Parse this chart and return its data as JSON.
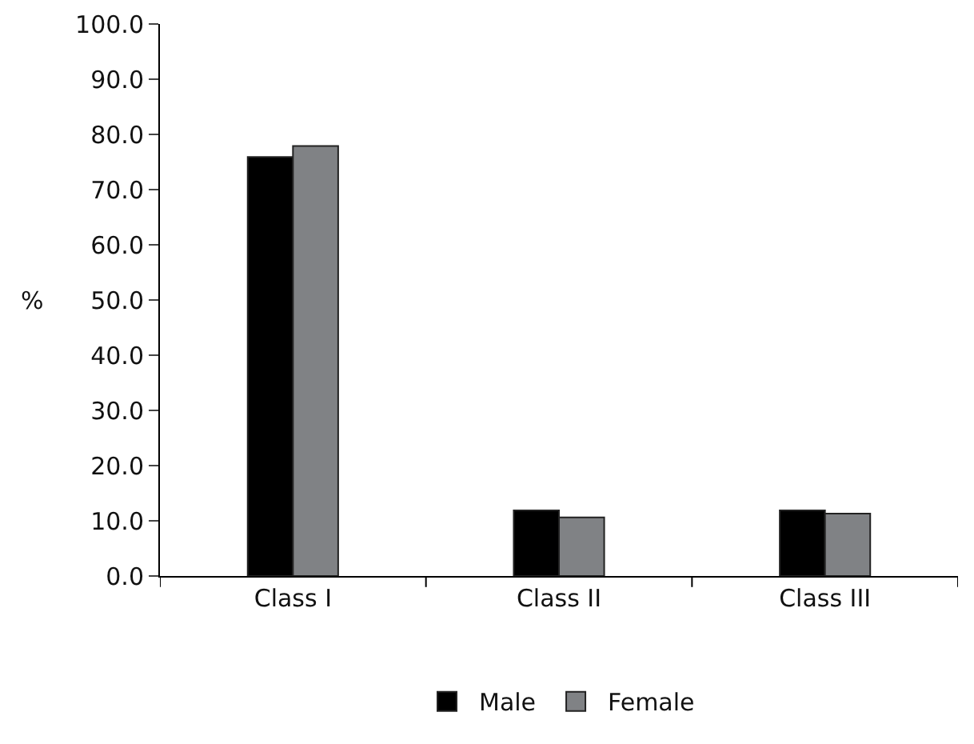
{
  "chart_data": {
    "type": "bar",
    "ylabel": "%",
    "categories": [
      "Class I",
      "Class II",
      "Class III"
    ],
    "series": [
      {
        "name": "Male",
        "color": "#000000",
        "values": [
          75.9,
          11.9,
          11.9
        ]
      },
      {
        "name": "Female",
        "color": "#808285",
        "values": [
          77.9,
          10.6,
          11.3
        ]
      }
    ],
    "ylim": [
      0,
      100
    ],
    "yticks": [
      {
        "value": 0,
        "label": "0.0"
      },
      {
        "value": 10,
        "label": "10.0"
      },
      {
        "value": 20,
        "label": "20.0"
      },
      {
        "value": 30,
        "label": "30.0"
      },
      {
        "value": 40,
        "label": "40.0"
      },
      {
        "value": 50,
        "label": "50.0"
      },
      {
        "value": 60,
        "label": "60.0"
      },
      {
        "value": 70,
        "label": "70.0"
      },
      {
        "value": 80,
        "label": "80.0"
      },
      {
        "value": 90,
        "label": "90.0"
      },
      {
        "value": 100,
        "label": "100.0"
      }
    ],
    "grid": false,
    "legend": "bottom"
  }
}
